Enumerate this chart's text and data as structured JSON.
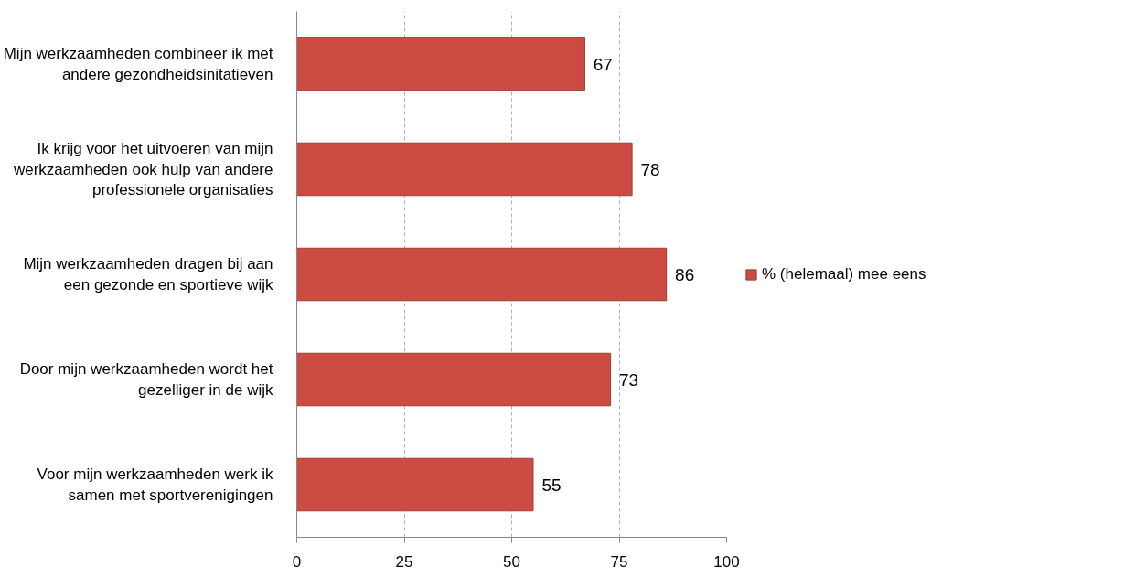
{
  "chart_data": {
    "type": "bar",
    "orientation": "horizontal",
    "categories": [
      "Mijn werkzaamheden combineer ik met andere gezondheidsinitatieven",
      "Ik krijg voor het uitvoeren van mijn werkzaamheden ook hulp van andere professionele organisaties",
      "Mijn werkzaamheden dragen bij aan een gezonde en sportieve wijk",
      "Door mijn werkzaamheden wordt het gezelliger in de wijk",
      "Voor mijn werkzaamheden werk ik samen met sportverenigingen"
    ],
    "series": [
      {
        "name": "% (helemaal) mee eens",
        "color": "#cc4b43",
        "values": [
          67,
          78,
          86,
          73,
          55
        ]
      }
    ],
    "xlim": [
      0,
      100
    ],
    "xticks": [
      0,
      25,
      50,
      75,
      100
    ],
    "grid": "x",
    "legend": "right",
    "data_labels": true
  }
}
